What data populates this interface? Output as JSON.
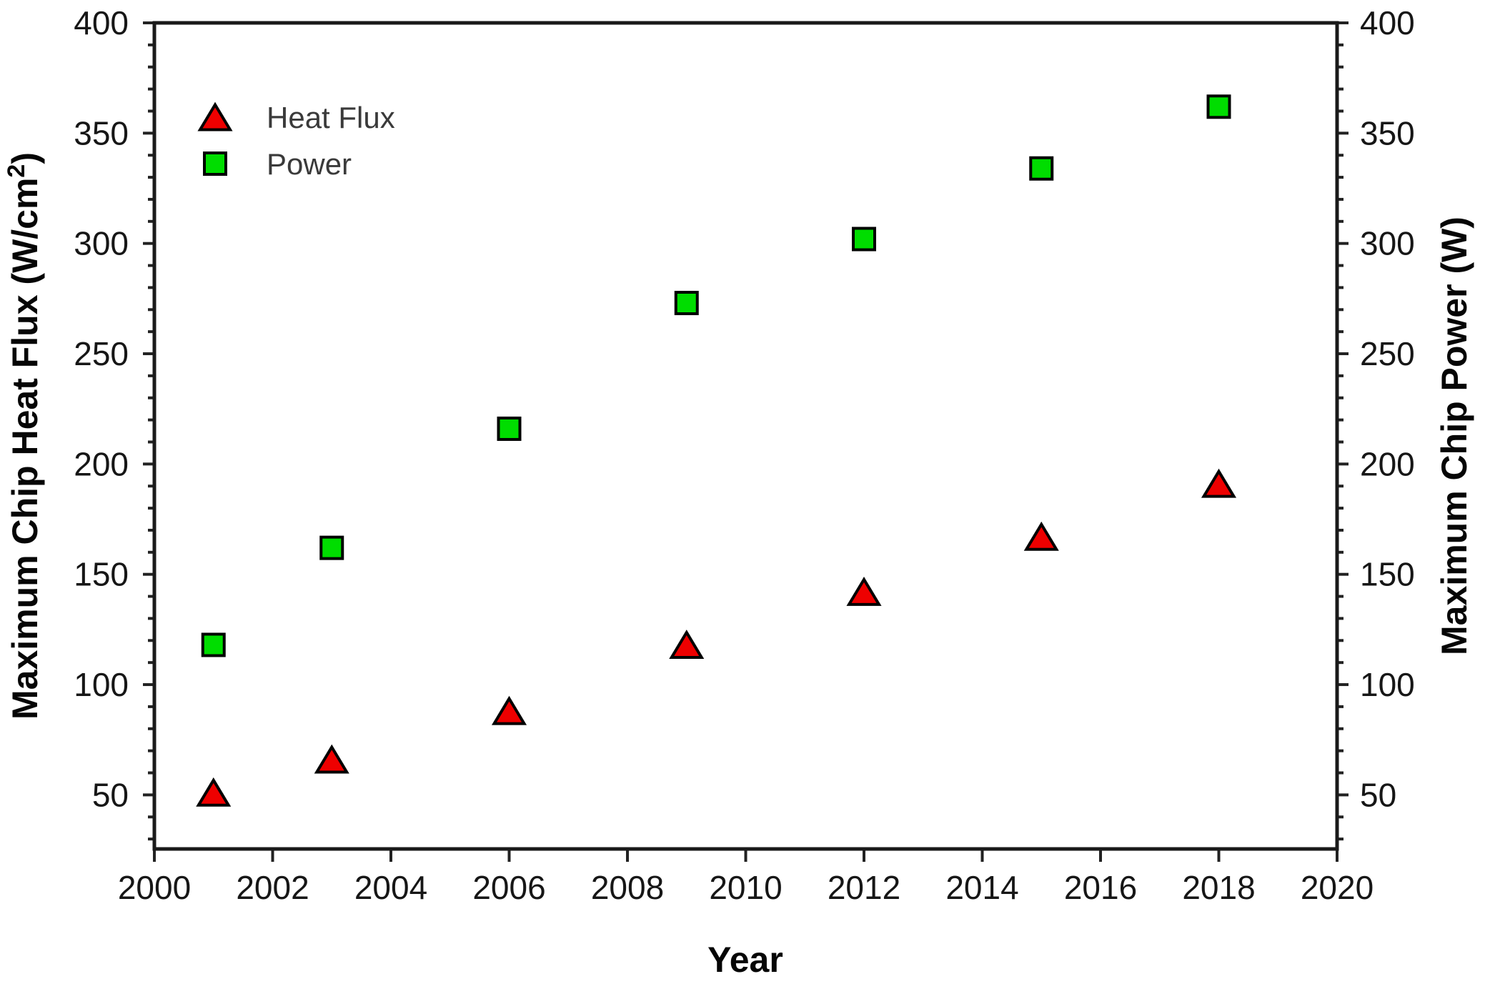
{
  "figure": {
    "background": "#ffffff"
  },
  "chart_data": {
    "type": "scatter",
    "title": "",
    "xlabel": "Year",
    "ylabel_left": {
      "base": "Maximum Chip Heat Flux (W/cm",
      "sup": "2",
      "end": ")"
    },
    "ylabel_right": "Maximum Chip Power (W)",
    "x": [
      2001,
      2003,
      2006,
      2009,
      2012,
      2015,
      2018
    ],
    "series": [
      {
        "name": "Heat Flux",
        "axis": "left",
        "marker": "triangle",
        "fill": "#ee0000",
        "edge": "#000000",
        "values": [
          51,
          66,
          88,
          118,
          142,
          167,
          191
        ]
      },
      {
        "name": "Power",
        "axis": "right",
        "marker": "square",
        "fill": "#00dd00",
        "edge": "#000000",
        "values": [
          118,
          162,
          216,
          273,
          302,
          334,
          362
        ]
      }
    ],
    "xlim": [
      2000,
      2020
    ],
    "ylim": [
      25.5,
      400
    ],
    "x_major_ticks": [
      2000,
      2002,
      2004,
      2006,
      2008,
      2010,
      2012,
      2014,
      2016,
      2018,
      2020
    ],
    "y_major_ticks": [
      50,
      100,
      150,
      200,
      250,
      300,
      350,
      400
    ],
    "y_minor_tick_step": 10,
    "grid": false,
    "legend": {
      "position": "upper-left-inside",
      "entries": [
        "Heat Flux",
        "Power"
      ]
    }
  }
}
